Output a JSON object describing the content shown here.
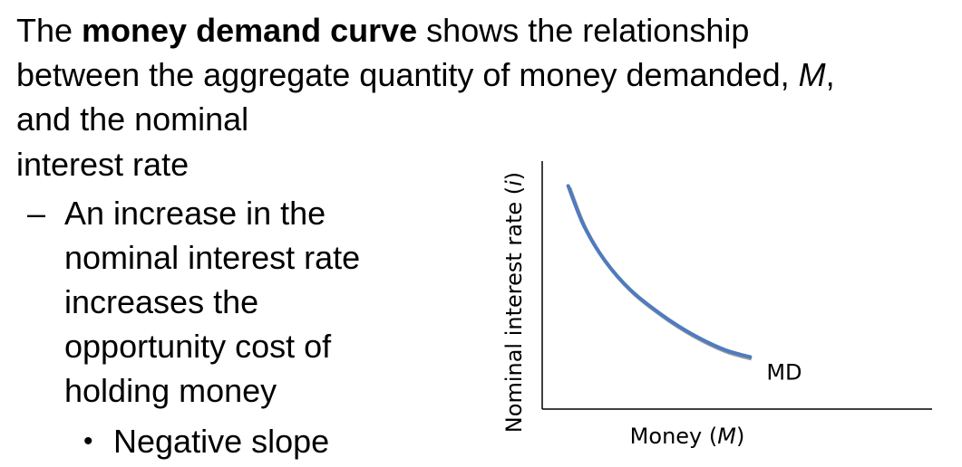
{
  "slide": {
    "line1_pre": "The ",
    "line1_bold": "money demand curve",
    "line1_post": " shows the relationship",
    "line2_pre": "between the aggregate quantity of money demanded, ",
    "line2_italic": "M",
    "line2_post": ",",
    "line3": "and the nominal",
    "line4": "interest rate",
    "dash": "–",
    "sub_bullet": [
      "An increase in the",
      "nominal interest rate",
      "increases the",
      "opportunity cost of",
      "holding money"
    ],
    "bullet_symbol": "•",
    "sub_sub_bullet": "Negative slope"
  },
  "chart_data": {
    "type": "line",
    "xlabel_pre": "Money (",
    "xlabel_var": "M",
    "xlabel_post": ")",
    "ylabel_pre": "Nominal interest rate (",
    "ylabel_var": "i",
    "ylabel_post": ")",
    "series": [
      {
        "name": "MD",
        "color": "#4f7bbf",
        "x": [
          1.0,
          1.6,
          2.4,
          3.4,
          4.6,
          5.8,
          7.0,
          8.0
        ],
        "y": [
          9.0,
          7.4,
          6.0,
          4.8,
          3.8,
          3.0,
          2.4,
          2.1
        ]
      }
    ],
    "xlim": [
      0,
      15
    ],
    "ylim": [
      0,
      10
    ],
    "grid": false,
    "ticks": false
  }
}
